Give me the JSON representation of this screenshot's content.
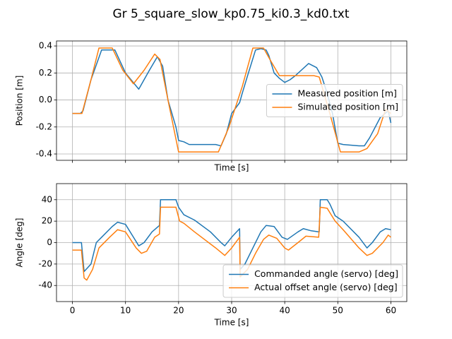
{
  "title": "Gr 5_square_slow_kp0.75_ki0.3_kd0.txt",
  "chart_data": [
    {
      "type": "line",
      "xlabel": "Time [s]",
      "ylabel": "Position [m]",
      "xlim": [
        -3,
        63
      ],
      "xticks": [
        0,
        10,
        20,
        30,
        40,
        50,
        60
      ],
      "xtick_labels": false,
      "ylim": [
        -0.447,
        0.437
      ],
      "yticks": [
        -0.4,
        -0.2,
        {
          "value": 0,
          "label": "0.0"
        },
        0.2,
        0.4
      ],
      "grid": true,
      "legend": "right",
      "series": [
        {
          "name": "Measured position [m]",
          "color": "#1f77b4",
          "x": [
            0,
            1.5,
            2,
            3.5,
            5.5,
            8,
            10,
            12.5,
            14.5,
            16,
            17,
            18,
            19.5,
            20,
            21,
            22,
            27,
            28,
            29,
            30,
            31.5,
            32,
            33,
            34.5,
            35.5,
            36.5,
            37,
            38,
            39,
            40,
            41,
            42,
            44.5,
            46,
            47,
            48,
            49,
            50,
            51,
            54,
            55,
            56,
            58,
            59.5,
            60
          ],
          "values": [
            -0.1,
            -0.1,
            -0.08,
            0.15,
            0.37,
            0.37,
            0.2,
            0.08,
            0.22,
            0.32,
            0.25,
            0,
            -0.2,
            -0.3,
            -0.31,
            -0.33,
            -0.33,
            -0.34,
            -0.25,
            -0.1,
            -0.02,
            0.05,
            0.18,
            0.37,
            0.38,
            0.37,
            0.33,
            0.2,
            0.16,
            0.13,
            0.15,
            0.18,
            0.27,
            0.24,
            0.17,
            0.05,
            -0.1,
            -0.32,
            -0.33,
            -0.34,
            -0.34,
            -0.28,
            -0.13,
            -0.08,
            -0.17
          ]
        },
        {
          "name": "Simulated position [m]",
          "color": "#ff7f0e",
          "x": [
            0,
            1.8,
            3.5,
            5,
            7.5,
            9.5,
            11.5,
            13.5,
            15.5,
            16.5,
            18,
            20,
            27.5,
            29.5,
            32,
            34,
            36,
            37.5,
            39,
            45.5,
            46.5,
            48.5,
            50.5,
            54,
            55.5,
            57.5,
            59,
            60
          ],
          "values": [
            -0.1,
            -0.1,
            0.15,
            0.385,
            0.385,
            0.22,
            0.12,
            0.22,
            0.34,
            0.3,
            0,
            -0.385,
            -0.385,
            -0.2,
            0.1,
            0.385,
            0.385,
            0.28,
            0.18,
            0.18,
            0.17,
            -0.1,
            -0.385,
            -0.385,
            -0.36,
            -0.25,
            -0.07,
            -0.1
          ]
        }
      ]
    },
    {
      "type": "line",
      "xlabel": "Time [s]",
      "ylabel": "Angle [deg]",
      "xlim": [
        -3,
        63
      ],
      "xticks": [
        0,
        10,
        20,
        30,
        40,
        50,
        60
      ],
      "xtick_labels": true,
      "ylim": [
        -55,
        55
      ],
      "yticks": [
        -40,
        -20,
        0,
        20,
        40
      ],
      "grid": true,
      "legend": "lower right",
      "series": [
        {
          "name": "Commanded angle (servo) [deg]",
          "color": "#1f77b4",
          "x": [
            0,
            1.7,
            2.2,
            3.5,
            4.5,
            5.5,
            7.5,
            8.5,
            10,
            11.5,
            12.5,
            13.5,
            15,
            16.4,
            16.6,
            19.5,
            20,
            21,
            23,
            26,
            28,
            28.7,
            30,
            31.5,
            31.6,
            32.5,
            34,
            35.5,
            36.5,
            38,
            39.5,
            40.5,
            42.5,
            43.5,
            45,
            46.5,
            46.7,
            48,
            48.5,
            49.5,
            51,
            54,
            55.5,
            56.5,
            58,
            59,
            60
          ],
          "values": [
            0,
            0,
            -27,
            -20,
            0,
            5,
            15,
            19,
            17,
            5,
            -3,
            0,
            10,
            16,
            40,
            40,
            33,
            26,
            21,
            10,
            0,
            -3,
            5,
            13,
            -25,
            -20,
            -5,
            10,
            16,
            15,
            5,
            3,
            10,
            13,
            11,
            10,
            40,
            40,
            36,
            25,
            20,
            5,
            -5,
            0,
            10,
            13,
            12
          ]
        },
        {
          "name": "Actual offset angle (servo) [deg]",
          "color": "#ff7f0e",
          "x": [
            0,
            1.7,
            2.2,
            2.7,
            3.8,
            5,
            7,
            8.5,
            10,
            12,
            13,
            14,
            15.5,
            16.4,
            16.6,
            19.5,
            20.2,
            21,
            23,
            27,
            28.7,
            30,
            31.5,
            31.6,
            33,
            34.5,
            36,
            37,
            38.5,
            40,
            40.7,
            42.5,
            44,
            46.4,
            46.7,
            48,
            49.5,
            51,
            54,
            55.5,
            56.5,
            58.5,
            59.5,
            60
          ],
          "values": [
            -7,
            -7,
            -33,
            -35,
            -25,
            -5,
            5,
            12,
            10,
            -5,
            -10,
            -8,
            5,
            8,
            33,
            33,
            20,
            18,
            10,
            -5,
            -12,
            -5,
            5,
            -32,
            -25,
            -10,
            3,
            7,
            4,
            -5,
            -7,
            0,
            6,
            5,
            33,
            32,
            20,
            12,
            -5,
            -12,
            -10,
            0,
            7,
            5
          ]
        }
      ]
    }
  ]
}
